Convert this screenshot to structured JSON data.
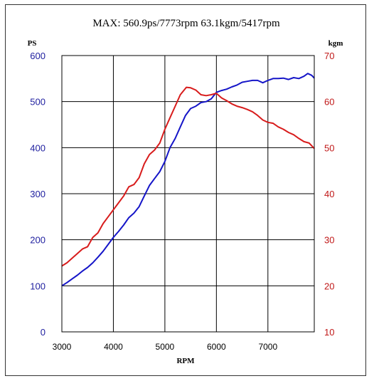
{
  "chart_data": {
    "type": "line",
    "title": "MAX: 560.9ps/7773rpm   63.1kgm/5417rpm",
    "xlabel": "RPM",
    "ylabel_left": "PS",
    "ylabel_right": "kgm",
    "xlim": [
      3000,
      7900
    ],
    "ylim_left": [
      0,
      600
    ],
    "ylim_right": [
      10,
      70
    ],
    "x_ticks": [
      "3000",
      "4000",
      "5000",
      "6000",
      "7000"
    ],
    "y_ticks_left": [
      "0",
      "100",
      "200",
      "300",
      "400",
      "500",
      "600"
    ],
    "y_ticks_right": [
      "10",
      "20",
      "30",
      "40",
      "50",
      "60",
      "70"
    ],
    "grid": true,
    "colors": {
      "ps": "#1515c8",
      "torque": "#d81c1c",
      "axis_left": "#2020a0",
      "axis_right": "#c01818"
    },
    "series": [
      {
        "axis": "left",
        "x": [
          3000,
          3100,
          3200,
          3300,
          3400,
          3500,
          3600,
          3700,
          3800,
          3900,
          4000,
          4100,
          4200,
          4300,
          4400,
          4500,
          4600,
          4700,
          4800,
          4900,
          5000,
          5100,
          5200,
          5300,
          5400,
          5500,
          5600,
          5700,
          5800,
          5900,
          6000,
          6100,
          6200,
          6300,
          6400,
          6500,
          6600,
          6700,
          6800,
          6900,
          7000,
          7100,
          7200,
          7300,
          7400,
          7500,
          7600,
          7700,
          7773,
          7850,
          7900
        ],
        "y": [
          100,
          107,
          115,
          123,
          132,
          140,
          150,
          162,
          175,
          190,
          205,
          218,
          232,
          248,
          258,
          272,
          295,
          318,
          333,
          348,
          370,
          400,
          420,
          445,
          470,
          485,
          490,
          498,
          500,
          506,
          520,
          524,
          527,
          532,
          536,
          542,
          544,
          546,
          546,
          541,
          546,
          550,
          550,
          551,
          548,
          552,
          550,
          555,
          561,
          557,
          551
        ]
      },
      {
        "axis": "right",
        "x": [
          3000,
          3100,
          3200,
          3300,
          3400,
          3500,
          3600,
          3700,
          3800,
          3900,
          4000,
          4100,
          4200,
          4300,
          4400,
          4500,
          4600,
          4700,
          4800,
          4900,
          5000,
          5100,
          5200,
          5300,
          5417,
          5500,
          5600,
          5700,
          5800,
          5900,
          6000,
          6100,
          6200,
          6300,
          6400,
          6500,
          6600,
          6700,
          6800,
          6900,
          7000,
          7100,
          7200,
          7300,
          7400,
          7500,
          7600,
          7700,
          7800,
          7900
        ],
        "y": [
          24.3,
          25.0,
          26.0,
          27.0,
          28.0,
          28.5,
          30.5,
          31.5,
          33.5,
          35.0,
          36.5,
          38.0,
          39.5,
          41.5,
          42.0,
          43.5,
          46.5,
          48.5,
          49.5,
          51.0,
          54.0,
          56.5,
          59.0,
          61.5,
          63.1,
          63.0,
          62.5,
          61.5,
          61.3,
          61.5,
          61.8,
          60.8,
          60.2,
          59.5,
          59.0,
          58.7,
          58.3,
          57.8,
          57.0,
          56.0,
          55.5,
          55.3,
          54.5,
          54.0,
          53.3,
          52.8,
          52.0,
          51.3,
          51.0,
          49.8
        ]
      }
    ]
  }
}
